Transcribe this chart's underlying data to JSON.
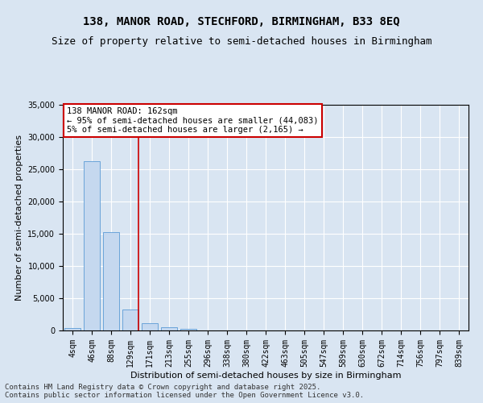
{
  "title_line1": "138, MANOR ROAD, STECHFORD, BIRMINGHAM, B33 8EQ",
  "title_line2": "Size of property relative to semi-detached houses in Birmingham",
  "xlabel": "Distribution of semi-detached houses by size in Birmingham",
  "ylabel": "Number of semi-detached properties",
  "categories": [
    "4sqm",
    "46sqm",
    "88sqm",
    "129sqm",
    "171sqm",
    "213sqm",
    "255sqm",
    "296sqm",
    "338sqm",
    "380sqm",
    "422sqm",
    "463sqm",
    "505sqm",
    "547sqm",
    "589sqm",
    "630sqm",
    "672sqm",
    "714sqm",
    "756sqm",
    "797sqm",
    "839sqm"
  ],
  "bar_values": [
    400,
    26200,
    15200,
    3300,
    1150,
    450,
    200,
    50,
    0,
    0,
    0,
    0,
    0,
    0,
    0,
    0,
    0,
    0,
    0,
    0,
    0
  ],
  "bar_color": "#c5d8ef",
  "bar_edgecolor": "#5b9bd5",
  "vline_color": "#cc0000",
  "vline_x": 3.4,
  "annotation_text": "138 MANOR ROAD: 162sqm\n← 95% of semi-detached houses are smaller (44,083)\n5% of semi-detached houses are larger (2,165) →",
  "annotation_box_edgecolor": "#cc0000",
  "annotation_box_facecolor": "#ffffff",
  "ylim": [
    0,
    35000
  ],
  "yticks": [
    0,
    5000,
    10000,
    15000,
    20000,
    25000,
    30000,
    35000
  ],
  "background_color": "#d9e5f2",
  "plot_bg_color": "#d9e5f2",
  "grid_color": "#ffffff",
  "footer_line1": "Contains HM Land Registry data © Crown copyright and database right 2025.",
  "footer_line2": "Contains public sector information licensed under the Open Government Licence v3.0.",
  "title_fontsize": 10,
  "subtitle_fontsize": 9,
  "axis_label_fontsize": 8,
  "tick_fontsize": 7,
  "annotation_fontsize": 7.5,
  "footer_fontsize": 6.5
}
